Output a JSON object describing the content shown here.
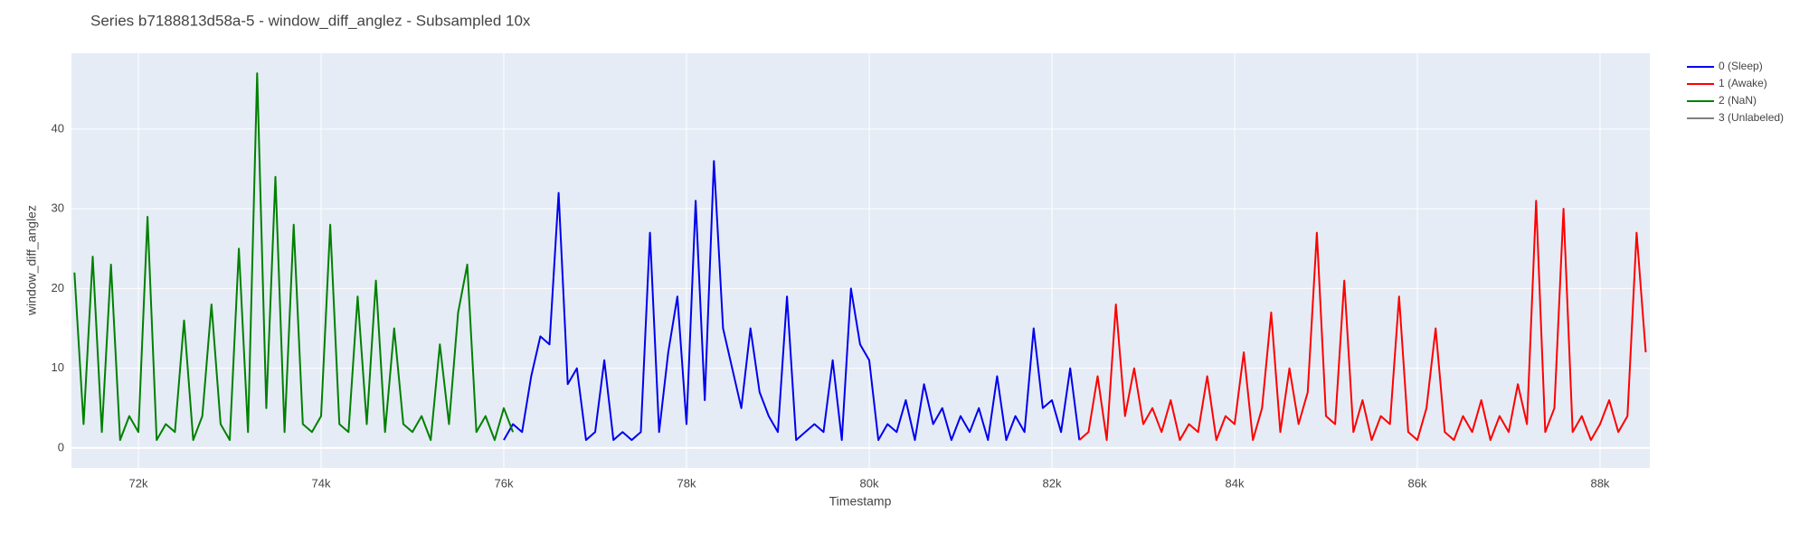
{
  "chart_data": {
    "type": "line",
    "title": "Series b7188813d58a-5 - window_diff_anglez - Subsampled 10x",
    "x_label": "Timestamp",
    "y_label": "window_diff_anglez",
    "xlim": [
      71267,
      88545
    ],
    "ylim": [
      -2.5,
      49.5
    ],
    "xticks": [
      {
        "value": 72000,
        "label": "72k"
      },
      {
        "value": 74000,
        "label": "74k"
      },
      {
        "value": 76000,
        "label": "76k"
      },
      {
        "value": 78000,
        "label": "78k"
      },
      {
        "value": 80000,
        "label": "80k"
      },
      {
        "value": 82000,
        "label": "82k"
      },
      {
        "value": 84000,
        "label": "84k"
      },
      {
        "value": 86000,
        "label": "86k"
      },
      {
        "value": 88000,
        "label": "88k"
      }
    ],
    "yticks": [
      0,
      10,
      20,
      30,
      40
    ],
    "grid": true,
    "legend": "right",
    "series": [
      {
        "name": "0 (Sleep)",
        "color": "#0000ee",
        "x": [
          76000,
          76100,
          76200,
          76300,
          76400,
          76500,
          76600,
          76700,
          76800,
          76900,
          77000,
          77100,
          77200,
          77300,
          77400,
          77500,
          77600,
          77700,
          77800,
          77900,
          78000,
          78100,
          78200,
          78300,
          78400,
          78500,
          78600,
          78700,
          78800,
          78900,
          79000,
          79100,
          79200,
          79300,
          79400,
          79500,
          79600,
          79700,
          79800,
          79900,
          80000,
          80100,
          80200,
          80300,
          80400,
          80500,
          80600,
          80700,
          80800,
          80900,
          81000,
          81100,
          81200,
          81300,
          81400,
          81500,
          81600,
          81700,
          81800,
          81900,
          82000,
          82100,
          82200,
          82300
        ],
        "values": [
          1,
          3,
          2,
          9,
          14,
          13,
          32,
          8,
          10,
          1,
          2,
          11,
          1,
          2,
          1,
          2,
          27,
          2,
          12,
          19,
          3,
          31,
          6,
          36,
          15,
          10,
          5,
          15,
          7,
          4,
          2,
          19,
          1,
          2,
          3,
          2,
          11,
          1,
          20,
          13,
          11,
          1,
          3,
          2,
          6,
          1,
          8,
          3,
          5,
          1,
          4,
          2,
          5,
          1,
          9,
          1,
          4,
          2,
          15,
          5,
          6,
          2,
          10,
          1
        ]
      },
      {
        "name": "1 (Awake)",
        "color": "#ff0000",
        "x": [
          82300,
          82400,
          82500,
          82600,
          82700,
          82800,
          82900,
          83000,
          83100,
          83200,
          83300,
          83400,
          83500,
          83600,
          83700,
          83800,
          83900,
          84000,
          84100,
          84200,
          84300,
          84400,
          84500,
          84600,
          84700,
          84800,
          84900,
          85000,
          85100,
          85200,
          85300,
          85400,
          85500,
          85600,
          85700,
          85800,
          85900,
          86000,
          86100,
          86200,
          86300,
          86400,
          86500,
          86600,
          86700,
          86800,
          86900,
          87000,
          87100,
          87200,
          87300,
          87400,
          87500,
          87600,
          87700,
          87800,
          87900,
          88000,
          88100,
          88200,
          88300,
          88400,
          88500
        ],
        "values": [
          1,
          2,
          9,
          1,
          18,
          4,
          10,
          3,
          5,
          2,
          6,
          1,
          3,
          2,
          9,
          1,
          4,
          3,
          12,
          1,
          5,
          17,
          2,
          10,
          3,
          7,
          27,
          4,
          3,
          21,
          2,
          6,
          1,
          4,
          3,
          19,
          2,
          1,
          5,
          15,
          2,
          1,
          4,
          2,
          6,
          1,
          4,
          2,
          8,
          3,
          31,
          2,
          5,
          30,
          2,
          4,
          1,
          3,
          6,
          2,
          4,
          27,
          12
        ]
      },
      {
        "name": "2 (NaN)",
        "color": "#008000",
        "x": [
          71300,
          71400,
          71500,
          71600,
          71700,
          71800,
          71900,
          72000,
          72100,
          72200,
          72300,
          72400,
          72500,
          72600,
          72700,
          72800,
          72900,
          73000,
          73100,
          73200,
          73300,
          73400,
          73500,
          73600,
          73700,
          73800,
          73900,
          74000,
          74100,
          74200,
          74300,
          74400,
          74500,
          74600,
          74700,
          74800,
          74900,
          75000,
          75100,
          75200,
          75300,
          75400,
          75500,
          75600,
          75700,
          75800,
          75900,
          76000,
          76100
        ],
        "values": [
          22,
          3,
          24,
          2,
          23,
          1,
          4,
          2,
          29,
          1,
          3,
          2,
          16,
          1,
          4,
          18,
          3,
          1,
          25,
          2,
          47,
          5,
          34,
          2,
          28,
          3,
          2,
          4,
          28,
          3,
          2,
          19,
          3,
          21,
          2,
          15,
          3,
          2,
          4,
          1,
          13,
          3,
          17,
          23,
          2,
          4,
          1,
          5,
          2
        ]
      },
      {
        "name": "3 (Unlabeled)",
        "color": "#808080",
        "x": [],
        "values": []
      }
    ]
  }
}
